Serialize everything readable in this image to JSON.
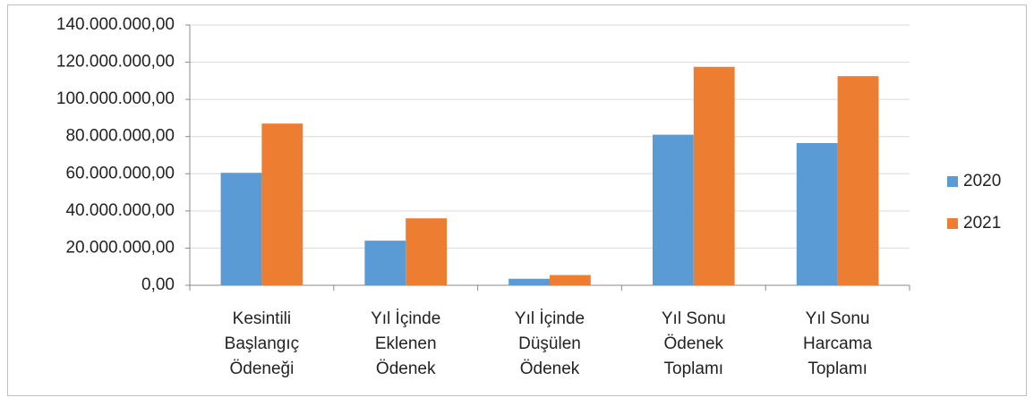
{
  "chart_data": {
    "type": "bar",
    "categories": [
      "Kesintili\nBaşlangıç\nÖdeneği",
      "Yıl İçinde\nEklenen\nÖdenek",
      "Yıl İçinde\nDüşülen\nÖdenek",
      "Yıl Sonu\nÖdenek\nToplamı",
      "Yıl Sonu\nHarcama\nToplamı"
    ],
    "series": [
      {
        "name": "2020",
        "color": "#5b9bd5",
        "values": [
          60500000,
          24000000,
          3500000,
          81000000,
          76500000
        ]
      },
      {
        "name": "2021",
        "color": "#ed7d31",
        "values": [
          87000000,
          36000000,
          5500000,
          117500000,
          112500000
        ]
      }
    ],
    "ylim": [
      0,
      140000000
    ],
    "yticks": [
      {
        "value": 0,
        "label": "0,00"
      },
      {
        "value": 20000000,
        "label": "20.000.000,00"
      },
      {
        "value": 40000000,
        "label": "40.000.000,00"
      },
      {
        "value": 60000000,
        "label": "60.000.000,00"
      },
      {
        "value": 80000000,
        "label": "80.000.000,00"
      },
      {
        "value": 100000000,
        "label": "100.000.000,00"
      },
      {
        "value": 120000000,
        "label": "120.000.000,00"
      },
      {
        "value": 140000000,
        "label": "140.000.000,00"
      }
    ],
    "grid": true,
    "legend": "right"
  }
}
